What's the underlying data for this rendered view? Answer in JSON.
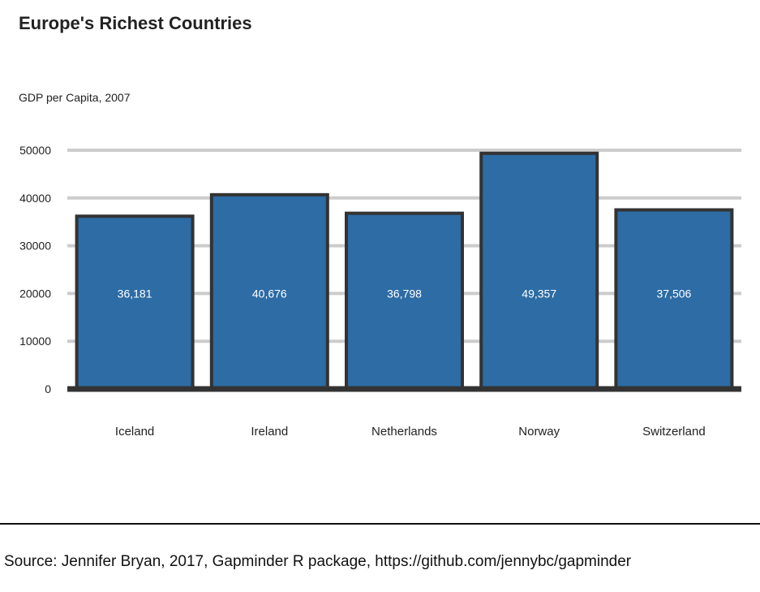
{
  "chart_data": {
    "type": "bar",
    "title": "Europe's Richest Countries",
    "subtitle": "GDP per Capita, 2007",
    "xlabel": "",
    "ylabel": "",
    "categories": [
      "Iceland",
      "Ireland",
      "Netherlands",
      "Norway",
      "Switzerland"
    ],
    "values": [
      36181,
      40676,
      36798,
      49357,
      37506
    ],
    "value_labels": [
      "36,181",
      "40,676",
      "36,798",
      "49,357",
      "37,506"
    ],
    "yticks": [
      "0",
      "10000",
      "20000",
      "30000",
      "40000",
      "50000"
    ],
    "ylim": [
      0,
      50000
    ],
    "grid": true,
    "legend": "none",
    "colors": {
      "bar_fill": "#2d6ca5",
      "bar_stroke": "#333333",
      "grid": "#cccccc",
      "baseline": "#333333",
      "value_label": "#ffffff"
    }
  },
  "source": "Source: Jennifer Bryan, 2017, Gapminder R package, https://github.com/jennybc/gapminder"
}
